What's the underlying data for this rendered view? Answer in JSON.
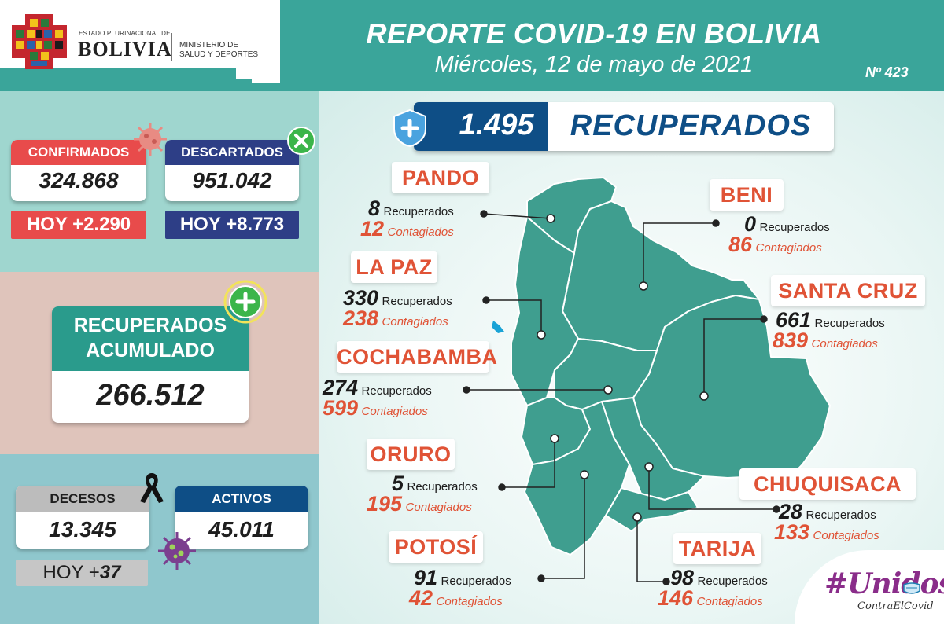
{
  "header": {
    "logo_line1": "ESTADO PLURINACIONAL DE",
    "logo_line2": "BOLIVIA",
    "ministry_line1": "MINISTERIO DE",
    "ministry_line2": "SALUD Y DEPORTES",
    "title": "REPORTE COVID-19 EN BOLIVIA",
    "date": "Miércoles, 12 de mayo de 2021",
    "report_number": "Nº 423"
  },
  "summary": {
    "confirmados": {
      "label": "CONFIRMADOS",
      "value": "324.868",
      "today": "HOY +2.290"
    },
    "descartados": {
      "label": "DESCARTADOS",
      "value": "951.042",
      "today": "HOY +8.773"
    },
    "recuperados_acumulado": {
      "label_line1": "RECUPERADOS",
      "label_line2": "ACUMULADO",
      "value": "266.512"
    },
    "decesos": {
      "label": "DECESOS",
      "value": "13.345",
      "today_prefix": "HOY +",
      "today_value": "37"
    },
    "activos": {
      "label": "ACTIVOS",
      "value": "45.011"
    }
  },
  "recovered_banner": {
    "value": "1.495",
    "label": "RECUPERADOS"
  },
  "labels": {
    "recuperados": "Recuperados",
    "contagiados": "Contagiados"
  },
  "departments": {
    "pando": {
      "name": "PANDO",
      "recuperados": "8",
      "contagiados": "12"
    },
    "beni": {
      "name": "BENI",
      "recuperados": "0",
      "contagiados": "86"
    },
    "la_paz": {
      "name": "LA PAZ",
      "recuperados": "330",
      "contagiados": "238"
    },
    "santa_cruz": {
      "name": "SANTA CRUZ",
      "recuperados": "661",
      "contagiados": "839"
    },
    "cochabamba": {
      "name": "COCHABAMBA",
      "recuperados": "274",
      "contagiados": "599"
    },
    "oruro": {
      "name": "ORURO",
      "recuperados": "5",
      "contagiados": "195"
    },
    "chuquisaca": {
      "name": "CHUQUISACA",
      "recuperados": "28",
      "contagiados": "133"
    },
    "potosi": {
      "name": "POTOSÍ",
      "recuperados": "91",
      "contagiados": "42"
    },
    "tarija": {
      "name": "TARIJA",
      "recuperados": "98",
      "contagiados": "146"
    }
  },
  "campaign": {
    "line1": "#Unidos",
    "line2": "ContraElCovid"
  },
  "colors": {
    "teal": "#3aa59a",
    "map_fill": "#3f9e8f",
    "red": "#e84b4b",
    "navy": "#2d3e86",
    "orange": "#e05336",
    "dark_navy": "#0e4e86"
  }
}
